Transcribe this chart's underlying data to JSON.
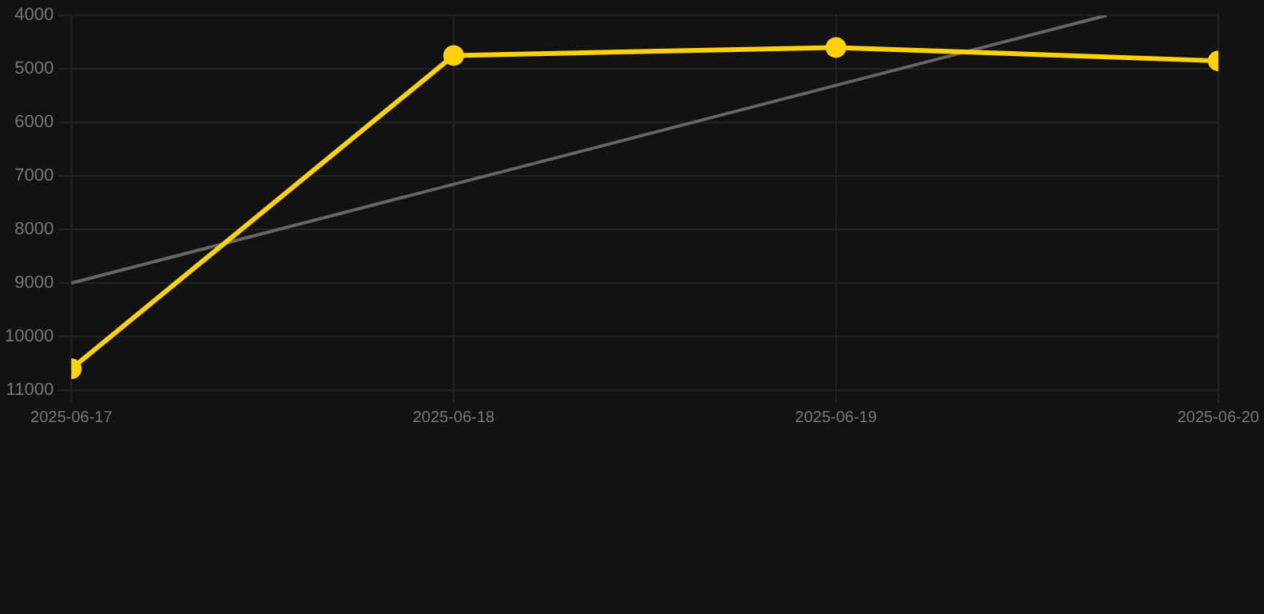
{
  "chart_data": {
    "type": "line",
    "x": [
      "2025-06-17",
      "2025-06-18",
      "2025-06-19",
      "2025-06-20"
    ],
    "series": [
      {
        "color": "#ffd20a",
        "values": [
          10600,
          4750,
          4600,
          4850
        ],
        "marker": "circle"
      },
      {
        "type": "line",
        "color": "#666666",
        "x": [
          "2025-06-17",
          "2025-06-19T17:00"
        ],
        "values": [
          9000,
          4000
        ],
        "marker": "none"
      }
    ],
    "xlim": [
      "2025-06-17",
      "2025-06-20"
    ],
    "xticks": [
      "2025-06-17",
      "2025-06-18",
      "2025-06-19",
      "2025-06-20"
    ],
    "ylim": [
      11000,
      4000
    ],
    "yticks": [
      4000,
      5000,
      6000,
      7000,
      8000,
      9000,
      10000,
      11000
    ],
    "grid": true,
    "legend": false
  }
}
